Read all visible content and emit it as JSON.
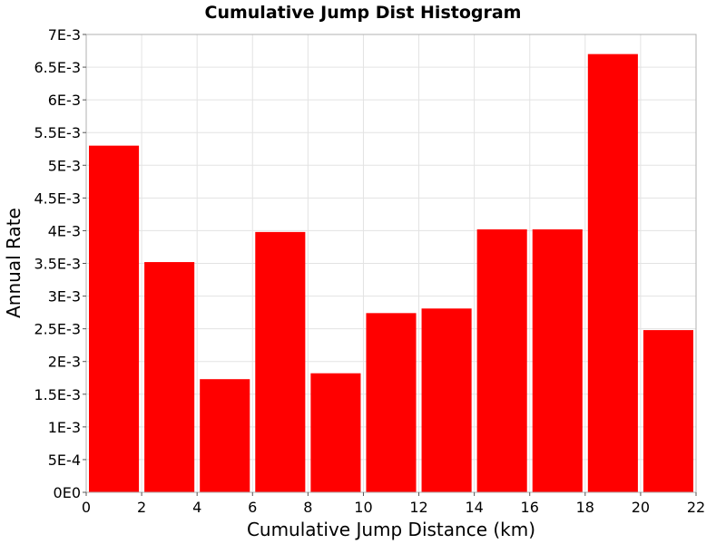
{
  "chart_data": {
    "type": "bar",
    "title": "Cumulative Jump Dist Histogram",
    "xlabel": "Cumulative Jump Distance (km)",
    "ylabel": "Annual Rate",
    "xlim": [
      0,
      22
    ],
    "ylim": [
      0,
      0.007
    ],
    "grid": true,
    "bar_color": "#ff0000",
    "x_ticks": [
      0,
      2,
      4,
      6,
      8,
      10,
      12,
      14,
      16,
      18,
      20,
      22
    ],
    "x_tick_labels": [
      "0",
      "2",
      "4",
      "6",
      "8",
      "10",
      "12",
      "14",
      "16",
      "18",
      "20",
      "22"
    ],
    "y_ticks": [
      0,
      0.0005,
      0.001,
      0.0015,
      0.002,
      0.0025,
      0.003,
      0.0035,
      0.004,
      0.0045,
      0.005,
      0.0055,
      0.006,
      0.0065,
      0.007
    ],
    "y_tick_labels": [
      "0E0",
      "5E-4",
      "1E-3",
      "1.5E-3",
      "2E-3",
      "2.5E-3",
      "3E-3",
      "3.5E-3",
      "4E-3",
      "4.5E-3",
      "5E-3",
      "5.5E-3",
      "6E-3",
      "6.5E-3",
      "7E-3"
    ],
    "bin_width": 2,
    "x": [
      1,
      3,
      5,
      7,
      9,
      11,
      13,
      15,
      17,
      19,
      21
    ],
    "values": [
      0.0053,
      0.00352,
      0.00173,
      0.00398,
      0.00182,
      0.00274,
      0.00281,
      0.00402,
      0.00402,
      0.0067,
      0.00248
    ]
  }
}
